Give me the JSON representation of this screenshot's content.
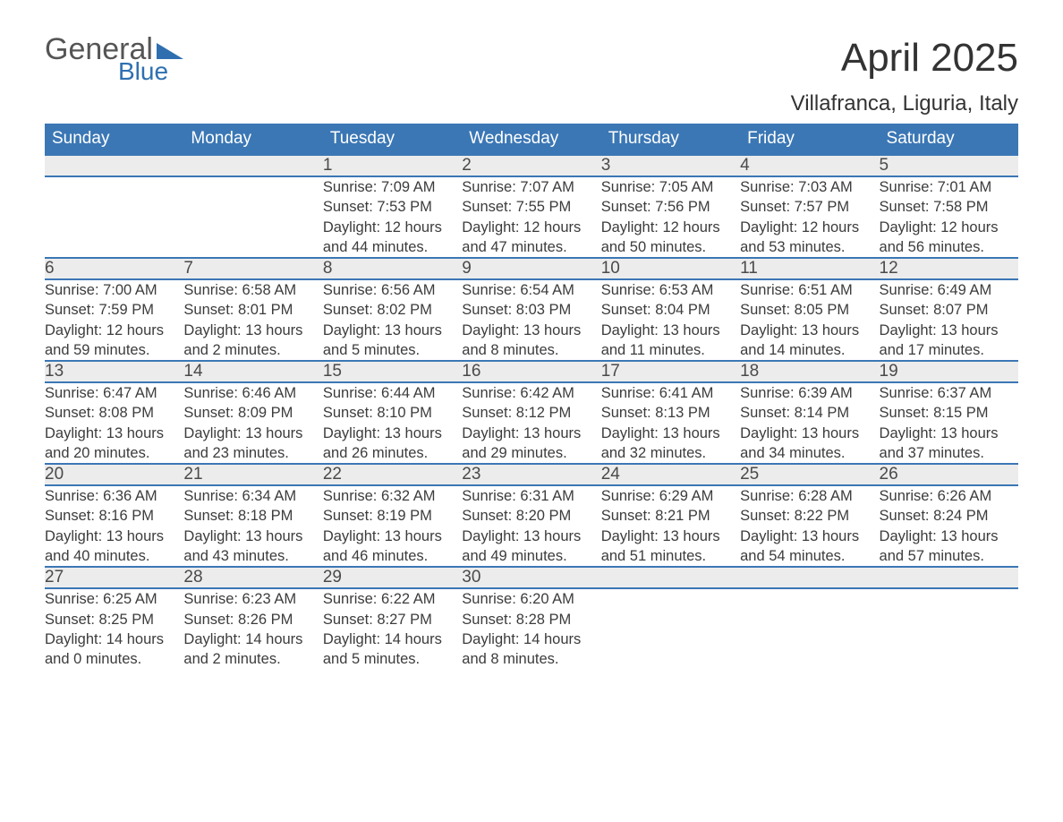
{
  "logo": {
    "line1": "General",
    "line2": "Blue",
    "triangle_color": "#2f6fb0"
  },
  "title": "April 2025",
  "location": "Villafranca, Liguria, Italy",
  "header_bg": "#3b77b5",
  "daynum_bg": "#ececec",
  "weekdays": [
    "Sunday",
    "Monday",
    "Tuesday",
    "Wednesday",
    "Thursday",
    "Friday",
    "Saturday"
  ],
  "weeks": [
    [
      null,
      null,
      {
        "n": "1",
        "sr": "7:09 AM",
        "ss": "7:53 PM",
        "dl": "12 hours and 44 minutes."
      },
      {
        "n": "2",
        "sr": "7:07 AM",
        "ss": "7:55 PM",
        "dl": "12 hours and 47 minutes."
      },
      {
        "n": "3",
        "sr": "7:05 AM",
        "ss": "7:56 PM",
        "dl": "12 hours and 50 minutes."
      },
      {
        "n": "4",
        "sr": "7:03 AM",
        "ss": "7:57 PM",
        "dl": "12 hours and 53 minutes."
      },
      {
        "n": "5",
        "sr": "7:01 AM",
        "ss": "7:58 PM",
        "dl": "12 hours and 56 minutes."
      }
    ],
    [
      {
        "n": "6",
        "sr": "7:00 AM",
        "ss": "7:59 PM",
        "dl": "12 hours and 59 minutes."
      },
      {
        "n": "7",
        "sr": "6:58 AM",
        "ss": "8:01 PM",
        "dl": "13 hours and 2 minutes."
      },
      {
        "n": "8",
        "sr": "6:56 AM",
        "ss": "8:02 PM",
        "dl": "13 hours and 5 minutes."
      },
      {
        "n": "9",
        "sr": "6:54 AM",
        "ss": "8:03 PM",
        "dl": "13 hours and 8 minutes."
      },
      {
        "n": "10",
        "sr": "6:53 AM",
        "ss": "8:04 PM",
        "dl": "13 hours and 11 minutes."
      },
      {
        "n": "11",
        "sr": "6:51 AM",
        "ss": "8:05 PM",
        "dl": "13 hours and 14 minutes."
      },
      {
        "n": "12",
        "sr": "6:49 AM",
        "ss": "8:07 PM",
        "dl": "13 hours and 17 minutes."
      }
    ],
    [
      {
        "n": "13",
        "sr": "6:47 AM",
        "ss": "8:08 PM",
        "dl": "13 hours and 20 minutes."
      },
      {
        "n": "14",
        "sr": "6:46 AM",
        "ss": "8:09 PM",
        "dl": "13 hours and 23 minutes."
      },
      {
        "n": "15",
        "sr": "6:44 AM",
        "ss": "8:10 PM",
        "dl": "13 hours and 26 minutes."
      },
      {
        "n": "16",
        "sr": "6:42 AM",
        "ss": "8:12 PM",
        "dl": "13 hours and 29 minutes."
      },
      {
        "n": "17",
        "sr": "6:41 AM",
        "ss": "8:13 PM",
        "dl": "13 hours and 32 minutes."
      },
      {
        "n": "18",
        "sr": "6:39 AM",
        "ss": "8:14 PM",
        "dl": "13 hours and 34 minutes."
      },
      {
        "n": "19",
        "sr": "6:37 AM",
        "ss": "8:15 PM",
        "dl": "13 hours and 37 minutes."
      }
    ],
    [
      {
        "n": "20",
        "sr": "6:36 AM",
        "ss": "8:16 PM",
        "dl": "13 hours and 40 minutes."
      },
      {
        "n": "21",
        "sr": "6:34 AM",
        "ss": "8:18 PM",
        "dl": "13 hours and 43 minutes."
      },
      {
        "n": "22",
        "sr": "6:32 AM",
        "ss": "8:19 PM",
        "dl": "13 hours and 46 minutes."
      },
      {
        "n": "23",
        "sr": "6:31 AM",
        "ss": "8:20 PM",
        "dl": "13 hours and 49 minutes."
      },
      {
        "n": "24",
        "sr": "6:29 AM",
        "ss": "8:21 PM",
        "dl": "13 hours and 51 minutes."
      },
      {
        "n": "25",
        "sr": "6:28 AM",
        "ss": "8:22 PM",
        "dl": "13 hours and 54 minutes."
      },
      {
        "n": "26",
        "sr": "6:26 AM",
        "ss": "8:24 PM",
        "dl": "13 hours and 57 minutes."
      }
    ],
    [
      {
        "n": "27",
        "sr": "6:25 AM",
        "ss": "8:25 PM",
        "dl": "14 hours and 0 minutes."
      },
      {
        "n": "28",
        "sr": "6:23 AM",
        "ss": "8:26 PM",
        "dl": "14 hours and 2 minutes."
      },
      {
        "n": "29",
        "sr": "6:22 AM",
        "ss": "8:27 PM",
        "dl": "14 hours and 5 minutes."
      },
      {
        "n": "30",
        "sr": "6:20 AM",
        "ss": "8:28 PM",
        "dl": "14 hours and 8 minutes."
      },
      null,
      null,
      null
    ]
  ],
  "labels": {
    "sunrise": "Sunrise: ",
    "sunset": "Sunset: ",
    "daylight": "Daylight: "
  }
}
